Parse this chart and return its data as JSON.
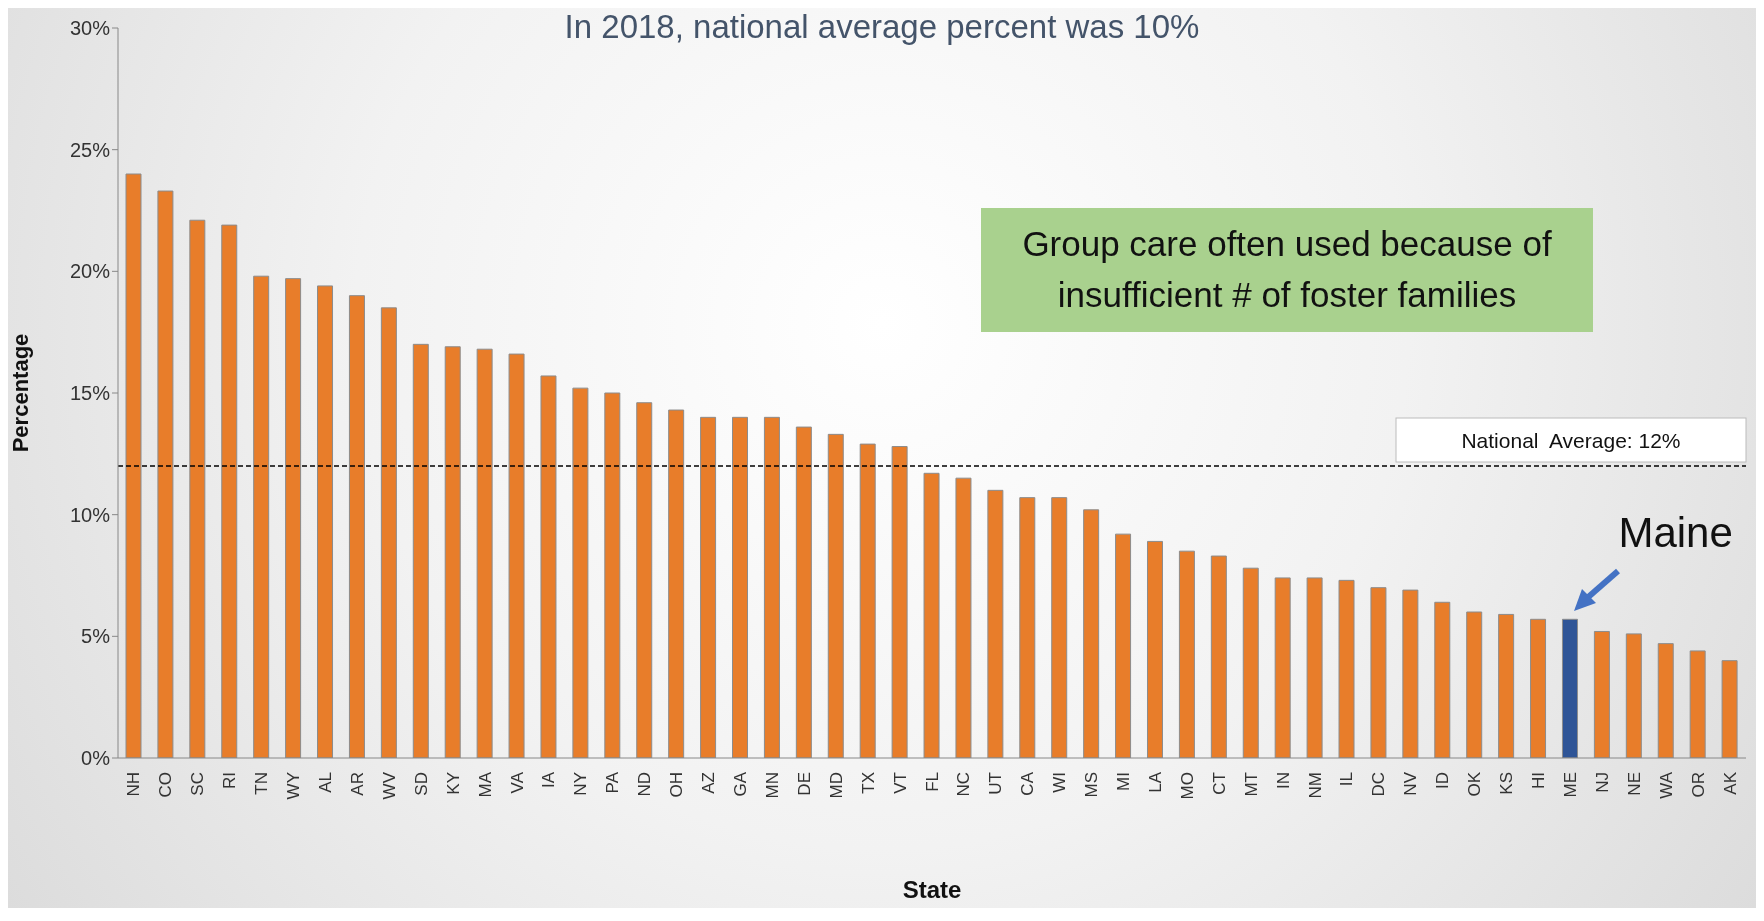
{
  "chart_data": {
    "type": "bar",
    "title": "In 2018, national average percent was 10%",
    "xlabel": "State",
    "ylabel": "Percentage",
    "categories": [
      "NH",
      "CO",
      "SC",
      "RI",
      "TN",
      "WY",
      "AL",
      "AR",
      "WV",
      "SD",
      "KY",
      "MA",
      "VA",
      "IA",
      "NY",
      "PA",
      "ND",
      "OH",
      "AZ",
      "GA",
      "MN",
      "DE",
      "MD",
      "TX",
      "VT",
      "FL",
      "NC",
      "UT",
      "CA",
      "WI",
      "MS",
      "MI",
      "LA",
      "MO",
      "CT",
      "MT",
      "IN",
      "NM",
      "IL",
      "DC",
      "NV",
      "ID",
      "OK",
      "KS",
      "HI",
      "ME",
      "NJ",
      "NE",
      "WA",
      "OR",
      "AK"
    ],
    "values": [
      24.0,
      23.3,
      22.1,
      21.9,
      19.8,
      19.7,
      19.4,
      19.0,
      18.5,
      17.0,
      16.9,
      16.8,
      16.6,
      15.7,
      15.2,
      15.0,
      14.6,
      14.3,
      14.0,
      14.0,
      14.0,
      13.6,
      13.3,
      12.9,
      12.8,
      11.7,
      11.5,
      11.0,
      10.7,
      10.7,
      10.2,
      9.2,
      8.9,
      8.5,
      8.3,
      7.8,
      7.4,
      7.4,
      7.3,
      7.0,
      6.9,
      6.4,
      6.0,
      5.9,
      5.7,
      5.7,
      5.2,
      5.1,
      4.7,
      4.4,
      4.0
    ],
    "colors": [
      "#e87d2a",
      "#e87d2a",
      "#e87d2a",
      "#e87d2a",
      "#e87d2a",
      "#e87d2a",
      "#e87d2a",
      "#e87d2a",
      "#e87d2a",
      "#e87d2a",
      "#e87d2a",
      "#e87d2a",
      "#e87d2a",
      "#e87d2a",
      "#e87d2a",
      "#e87d2a",
      "#e87d2a",
      "#e87d2a",
      "#e87d2a",
      "#e87d2a",
      "#e87d2a",
      "#e87d2a",
      "#e87d2a",
      "#e87d2a",
      "#e87d2a",
      "#e87d2a",
      "#e87d2a",
      "#e87d2a",
      "#e87d2a",
      "#e87d2a",
      "#e87d2a",
      "#e87d2a",
      "#e87d2a",
      "#e87d2a",
      "#e87d2a",
      "#e87d2a",
      "#e87d2a",
      "#e87d2a",
      "#e87d2a",
      "#e87d2a",
      "#e87d2a",
      "#e87d2a",
      "#e87d2a",
      "#e87d2a",
      "#e87d2a",
      "#2f5597",
      "#e87d2a",
      "#e87d2a",
      "#e87d2a",
      "#e87d2a",
      "#e87d2a"
    ],
    "ylim": [
      0,
      30
    ],
    "yticks": [
      {
        "value": 0,
        "label": "0%"
      },
      {
        "value": 5,
        "label": "5%"
      },
      {
        "value": 10,
        "label": "10%"
      },
      {
        "value": 15,
        "label": "15%"
      },
      {
        "value": 20,
        "label": "20%"
      },
      {
        "value": 25,
        "label": "25%"
      },
      {
        "value": 30,
        "label": "30%"
      }
    ],
    "grid": false,
    "legend": false,
    "ref_lines": [
      {
        "axis": "y",
        "value": 12,
        "label": "National  Average: 12%",
        "color": "#000000",
        "line_style": "dashed"
      }
    ],
    "annotations": [
      "Group care often used because of insufficient # of foster families",
      {
        "text": "Maine",
        "x": "ME",
        "y": 5.7
      }
    ]
  }
}
